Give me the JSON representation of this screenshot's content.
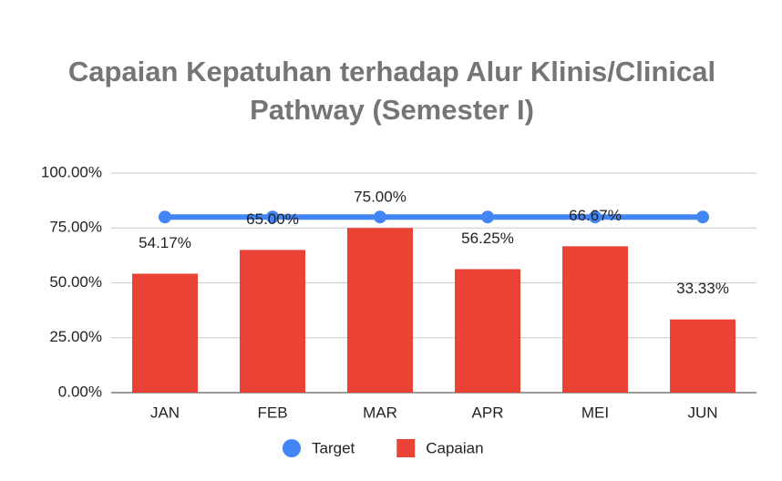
{
  "chart_data": {
    "type": "combo",
    "title": "Capaian Kepatuhan terhadap Alur Klinis/Clinical Pathway (Semester I)",
    "categories": [
      "JAN",
      "FEB",
      "MAR",
      "APR",
      "MEI",
      "JUN"
    ],
    "series": [
      {
        "name": "Target",
        "type": "line",
        "color": "#4285f4",
        "values": [
          80,
          80,
          80,
          80,
          80,
          80
        ]
      },
      {
        "name": "Capaian",
        "type": "bar",
        "color": "#ea4335",
        "values": [
          54.17,
          65,
          75,
          56.25,
          66.67,
          33.33
        ],
        "value_labels": [
          "54.17%",
          "65.00%",
          "75.00%",
          "56.25%",
          "66.67%",
          "33.33%"
        ]
      }
    ],
    "ylim": [
      0,
      100
    ],
    "yticks": [
      {
        "value": 0,
        "label": "0.00%"
      },
      {
        "value": 25,
        "label": "25.00%"
      },
      {
        "value": 50,
        "label": "50.00%"
      },
      {
        "value": 75,
        "label": "75.00%"
      },
      {
        "value": 100,
        "label": "100.00%"
      }
    ],
    "grid": true,
    "legend": "bottom"
  }
}
